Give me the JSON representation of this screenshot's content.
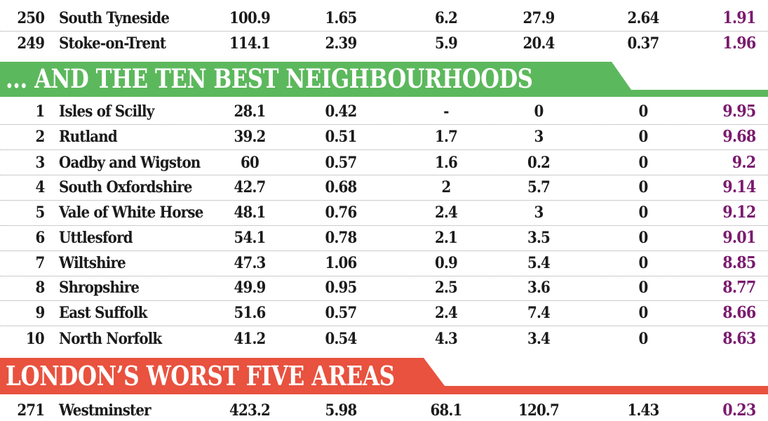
{
  "colors": {
    "green_banner": "#5cb85c",
    "red_banner": "#e8523f",
    "score_text": "#7a1a6e",
    "body_text": "#1a1a1a"
  },
  "top_rows": [
    {
      "rank": "250",
      "name": "South Tyneside",
      "v1": "100.9",
      "v2": "1.65",
      "v3": "6.2",
      "v4": "27.9",
      "v5": "2.64",
      "score": "1.91"
    },
    {
      "rank": "249",
      "name": "Stoke-on-Trent",
      "v1": "114.1",
      "v2": "2.39",
      "v3": "5.9",
      "v4": "20.4",
      "v5": "0.37",
      "score": "1.96"
    }
  ],
  "best_section": {
    "title": "... AND THE TEN BEST NEIGHBOURHOODS",
    "rows": [
      {
        "rank": "1",
        "name": "Isles of Scilly",
        "v1": "28.1",
        "v2": "0.42",
        "v3": "-",
        "v4": "0",
        "v5": "0",
        "score": "9.95"
      },
      {
        "rank": "2",
        "name": "Rutland",
        "v1": "39.2",
        "v2": "0.51",
        "v3": "1.7",
        "v4": "3",
        "v5": "0",
        "score": "9.68"
      },
      {
        "rank": "3",
        "name": "Oadby and Wigston",
        "v1": "60",
        "v2": "0.57",
        "v3": "1.6",
        "v4": "0.2",
        "v5": "0",
        "score": "9.2"
      },
      {
        "rank": "4",
        "name": "South Oxfordshire",
        "v1": "42.7",
        "v2": "0.68",
        "v3": "2",
        "v4": "5.7",
        "v5": "0",
        "score": "9.14"
      },
      {
        "rank": "5",
        "name": "Vale of White Horse",
        "v1": "48.1",
        "v2": "0.76",
        "v3": "2.4",
        "v4": "3",
        "v5": "0",
        "score": "9.12"
      },
      {
        "rank": "6",
        "name": "Uttlesford",
        "v1": "54.1",
        "v2": "0.78",
        "v3": "2.1",
        "v4": "3.5",
        "v5": "0",
        "score": "9.01"
      },
      {
        "rank": "7",
        "name": "Wiltshire",
        "v1": "47.3",
        "v2": "1.06",
        "v3": "0.9",
        "v4": "5.4",
        "v5": "0",
        "score": "8.85"
      },
      {
        "rank": "8",
        "name": "Shropshire",
        "v1": "49.9",
        "v2": "0.95",
        "v3": "2.5",
        "v4": "3.6",
        "v5": "0",
        "score": "8.77"
      },
      {
        "rank": "9",
        "name": "East Suffolk",
        "v1": "51.6",
        "v2": "0.57",
        "v3": "2.4",
        "v4": "7.4",
        "v5": "0",
        "score": "8.66"
      },
      {
        "rank": "10",
        "name": "North Norfolk",
        "v1": "41.2",
        "v2": "0.54",
        "v3": "4.3",
        "v4": "3.4",
        "v5": "0",
        "score": "8.63"
      }
    ]
  },
  "london_section": {
    "title": "LONDON’S WORST FIVE AREAS",
    "rows": [
      {
        "rank": "271",
        "name": "Westminster",
        "v1": "423.2",
        "v2": "5.98",
        "v3": "68.1",
        "v4": "120.7",
        "v5": "1.43",
        "score": "0.23"
      }
    ]
  }
}
